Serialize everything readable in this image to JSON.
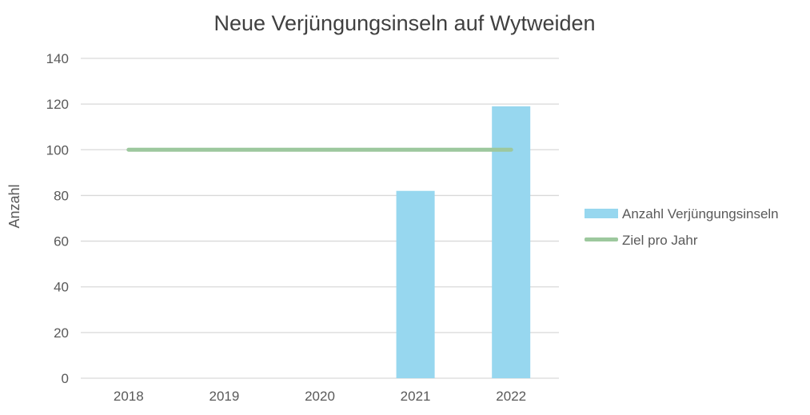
{
  "chart_data": {
    "type": "bar",
    "title": "Neue Verjüngungsinseln auf Wytweiden",
    "xlabel": "",
    "ylabel": "Anzahl",
    "categories": [
      "2018",
      "2019",
      "2020",
      "2021",
      "2022"
    ],
    "ylim": [
      0,
      140
    ],
    "yticks": [
      0,
      20,
      40,
      60,
      80,
      100,
      120,
      140
    ],
    "grid": true,
    "legend_position": "right",
    "series": [
      {
        "name": "Anzahl Verjüngungsinseln",
        "type": "bar",
        "values": [
          0,
          0,
          0,
          82,
          119
        ],
        "color": "#97D7EF"
      },
      {
        "name": "Ziel pro Jahr",
        "type": "line",
        "values": [
          100,
          100,
          100,
          100,
          100
        ],
        "color": "#9DC89E"
      }
    ]
  },
  "colors": {
    "grid": "#d9d9d9",
    "text": "#595959",
    "title": "#404040"
  }
}
